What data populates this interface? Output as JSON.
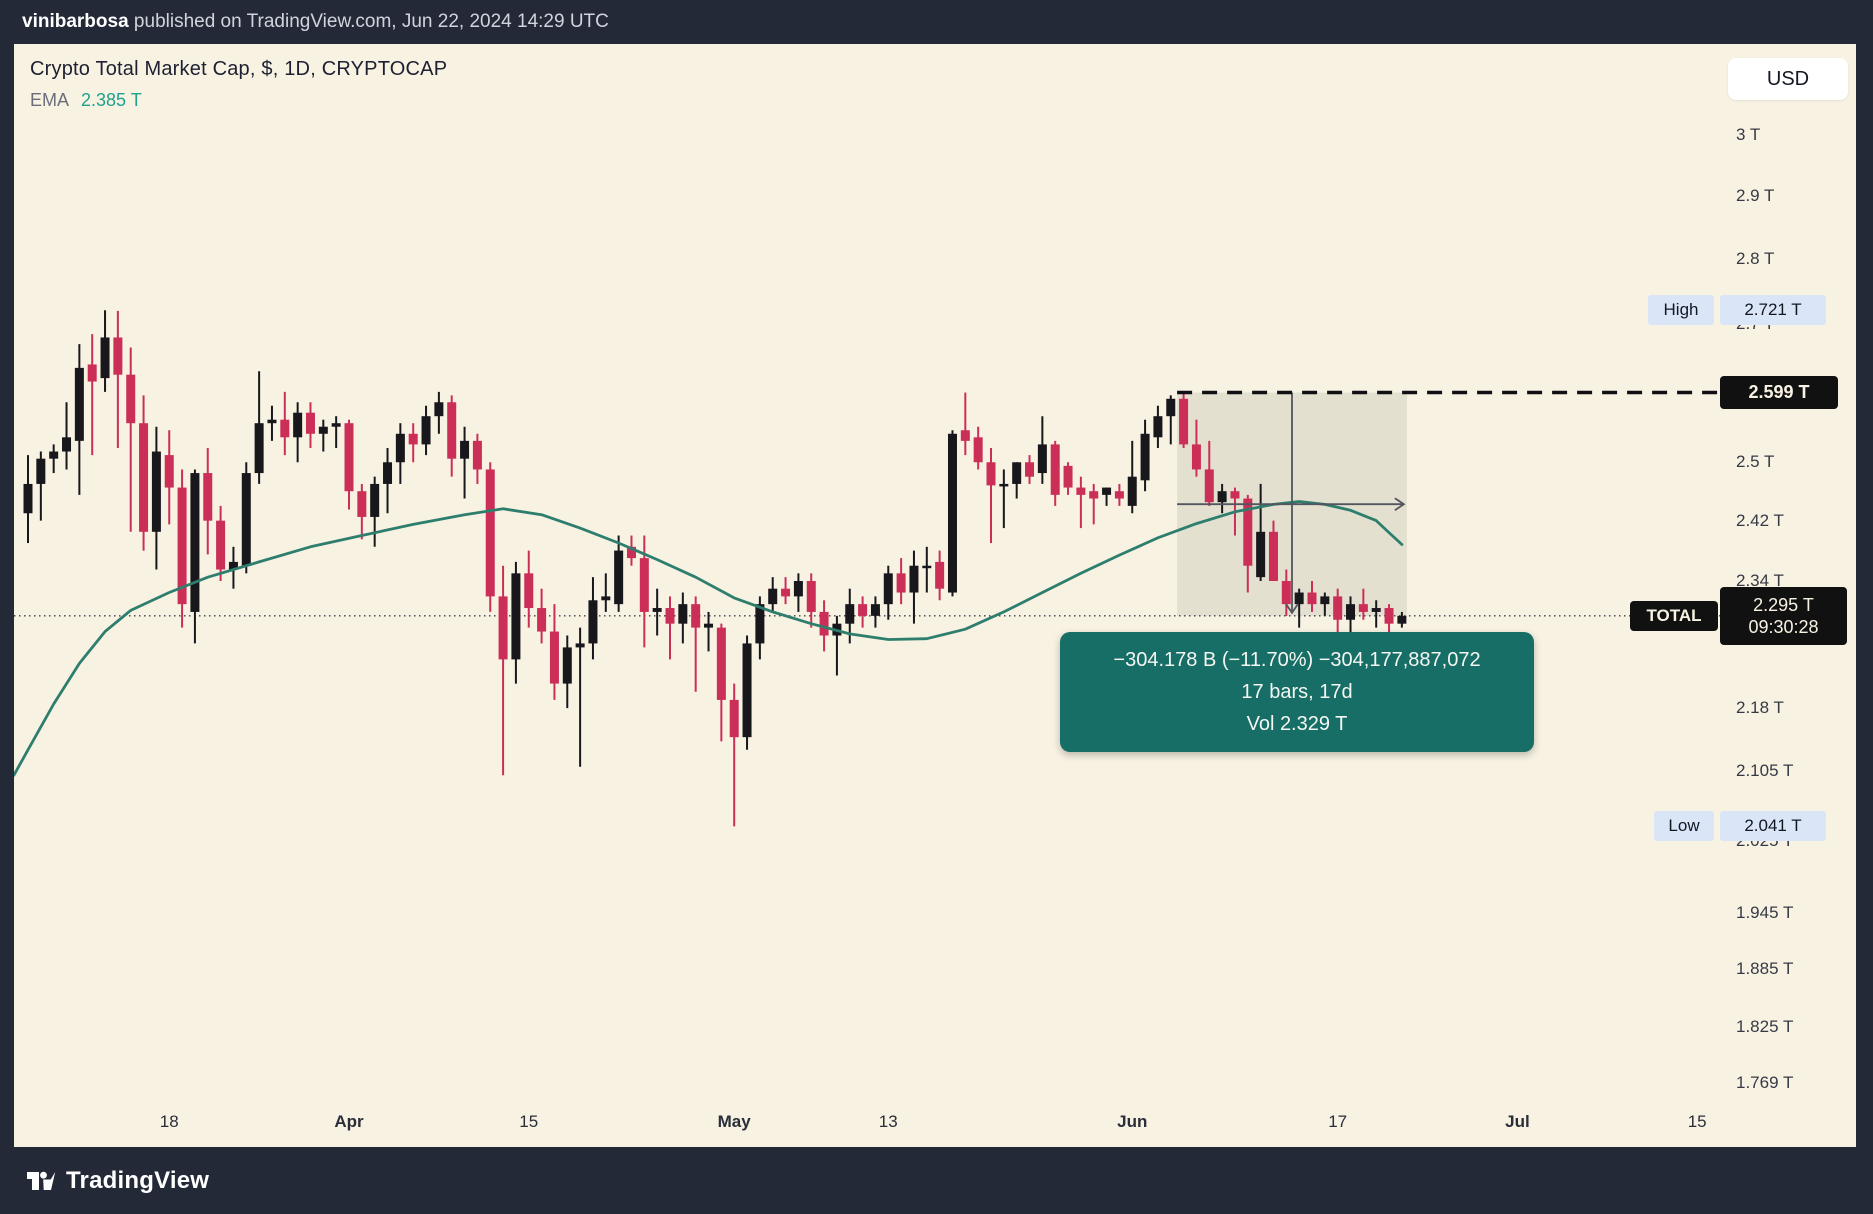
{
  "topbar": {
    "author": "vinibarbosa",
    "published": " published on TradingView.com, Jun 22, 2024 14:29 UTC"
  },
  "legend": {
    "title": "Crypto Total Market Cap, $, 1D, CRYPTOCAP",
    "ema_label": "EMA",
    "ema_value": "2.385 T"
  },
  "price_axis": {
    "currency": "USD",
    "ticks": [
      {
        "label": "3 T",
        "price": 3.0
      },
      {
        "label": "2.9 T",
        "price": 2.9
      },
      {
        "label": "2.8 T",
        "price": 2.8
      },
      {
        "label": "2.7 T",
        "price": 2.7
      },
      {
        "label": "2.5 T",
        "price": 2.5
      },
      {
        "label": "2.42 T",
        "price": 2.42
      },
      {
        "label": "2.34 T",
        "price": 2.34
      },
      {
        "label": "2.18 T",
        "price": 2.18
      },
      {
        "label": "2.105 T",
        "price": 2.105
      },
      {
        "label": "2.025 T",
        "price": 2.025
      },
      {
        "label": "1.945 T",
        "price": 1.945
      },
      {
        "label": "1.885 T",
        "price": 1.885
      },
      {
        "label": "1.825 T",
        "price": 1.825
      },
      {
        "label": "1.769 T",
        "price": 1.769
      }
    ],
    "high_chip": {
      "label": "High",
      "value": "2.721 T",
      "price": 2.721
    },
    "low_chip": {
      "label": "Low",
      "value": "2.041 T",
      "price": 2.041
    },
    "level_badge": {
      "value": "2.599 T",
      "price": 2.599
    },
    "last_badge": {
      "label": "TOTAL",
      "value": "2.295 T",
      "time": "09:30:28",
      "price": 2.295
    }
  },
  "time_axis": {
    "ticks": [
      {
        "label": "18",
        "index": 11,
        "bold": false
      },
      {
        "label": "Apr",
        "index": 25,
        "bold": true
      },
      {
        "label": "15",
        "index": 39,
        "bold": false
      },
      {
        "label": "May",
        "index": 55,
        "bold": true
      },
      {
        "label": "13",
        "index": 67,
        "bold": false
      },
      {
        "label": "Jun",
        "index": 86,
        "bold": true
      },
      {
        "label": "17",
        "index": 102,
        "bold": false
      },
      {
        "label": "Jul",
        "index": 116,
        "bold": true
      },
      {
        "label": "15",
        "index": 130,
        "bold": false
      }
    ]
  },
  "measure_tooltip": {
    "line1": "−304.178 B (−11.70%) −304,177,887,072",
    "line2": "17 bars, 17d",
    "line3": "Vol 2.329 T"
  },
  "footer": {
    "brand": "TradingView"
  },
  "colors": {
    "up": "#17171c",
    "down": "#cb2e57",
    "ema": "#2e7e6e",
    "panel_bg": "#f8f2e3",
    "frame_bg": "#242938",
    "tooltip_bg": "#176e66",
    "chip_blue": "#dbe5f8",
    "badge_black": "#111111",
    "measure_fill": "rgba(139,146,124,0.18)",
    "arrow": "#52555e"
  },
  "chart_data": {
    "type": "candlestick",
    "title": "Crypto Total Market Cap, $, 1D, CRYPTOCAP",
    "unit": "T (trillion USD)",
    "scale": "logarithmic",
    "start_date": "2024-03-07",
    "end_date": "2024-06-22",
    "visible_high": 2.721,
    "visible_low": 2.041,
    "last_price": 2.295,
    "ema_last": 2.385,
    "level_line": 2.599,
    "measure": {
      "from_index": 90,
      "to_index": 107,
      "bars": 17,
      "days": 17,
      "change": "−304.178 B",
      "change_pct": "−11.70%",
      "change_exact": "−304,177,887,072",
      "volume": "2.329 T",
      "top_price": 2.599,
      "bottom_price": 2.295
    },
    "candles": [
      [
        2.43,
        2.51,
        2.39,
        2.47
      ],
      [
        2.47,
        2.515,
        2.42,
        2.505
      ],
      [
        2.505,
        2.525,
        2.485,
        2.515
      ],
      [
        2.515,
        2.585,
        2.49,
        2.535
      ],
      [
        2.53,
        2.67,
        2.455,
        2.635
      ],
      [
        2.64,
        2.685,
        2.51,
        2.615
      ],
      [
        2.62,
        2.721,
        2.6,
        2.68
      ],
      [
        2.68,
        2.72,
        2.52,
        2.625
      ],
      [
        2.625,
        2.665,
        2.405,
        2.555
      ],
      [
        2.555,
        2.595,
        2.38,
        2.405
      ],
      [
        2.405,
        2.55,
        2.355,
        2.515
      ],
      [
        2.51,
        2.545,
        2.415,
        2.465
      ],
      [
        2.465,
        2.49,
        2.28,
        2.31
      ],
      [
        2.3,
        2.49,
        2.26,
        2.485
      ],
      [
        2.485,
        2.52,
        2.375,
        2.42
      ],
      [
        2.42,
        2.44,
        2.34,
        2.355
      ],
      [
        2.355,
        2.385,
        2.33,
        2.365
      ],
      [
        2.36,
        2.5,
        2.35,
        2.485
      ],
      [
        2.485,
        2.63,
        2.47,
        2.555
      ],
      [
        2.555,
        2.58,
        2.53,
        2.56
      ],
      [
        2.56,
        2.6,
        2.51,
        2.535
      ],
      [
        2.535,
        2.585,
        2.5,
        2.57
      ],
      [
        2.57,
        2.585,
        2.52,
        2.54
      ],
      [
        2.54,
        2.56,
        2.515,
        2.55
      ],
      [
        2.55,
        2.565,
        2.52,
        2.555
      ],
      [
        2.555,
        2.56,
        2.435,
        2.46
      ],
      [
        2.46,
        2.47,
        2.395,
        2.425
      ],
      [
        2.425,
        2.48,
        2.385,
        2.47
      ],
      [
        2.47,
        2.52,
        2.43,
        2.5
      ],
      [
        2.5,
        2.555,
        2.47,
        2.54
      ],
      [
        2.54,
        2.555,
        2.5,
        2.525
      ],
      [
        2.525,
        2.58,
        2.51,
        2.565
      ],
      [
        2.565,
        2.6,
        2.54,
        2.585
      ],
      [
        2.585,
        2.595,
        2.48,
        2.505
      ],
      [
        2.505,
        2.55,
        2.45,
        2.53
      ],
      [
        2.53,
        2.54,
        2.47,
        2.49
      ],
      [
        2.49,
        2.5,
        2.3,
        2.32
      ],
      [
        2.32,
        2.36,
        2.1,
        2.24
      ],
      [
        2.24,
        2.365,
        2.21,
        2.35
      ],
      [
        2.35,
        2.38,
        2.28,
        2.305
      ],
      [
        2.305,
        2.33,
        2.26,
        2.275
      ],
      [
        2.275,
        2.31,
        2.19,
        2.21
      ],
      [
        2.21,
        2.27,
        2.18,
        2.255
      ],
      [
        2.255,
        2.28,
        2.11,
        2.26
      ],
      [
        2.26,
        2.345,
        2.24,
        2.315
      ],
      [
        2.315,
        2.35,
        2.3,
        2.32
      ],
      [
        2.31,
        2.4,
        2.3,
        2.38
      ],
      [
        2.385,
        2.4,
        2.36,
        2.37
      ],
      [
        2.37,
        2.4,
        2.255,
        2.3
      ],
      [
        2.3,
        2.33,
        2.27,
        2.305
      ],
      [
        2.305,
        2.32,
        2.24,
        2.285
      ],
      [
        2.285,
        2.325,
        2.26,
        2.31
      ],
      [
        2.31,
        2.32,
        2.2,
        2.28
      ],
      [
        2.28,
        2.3,
        2.25,
        2.285
      ],
      [
        2.28,
        2.285,
        2.14,
        2.19
      ],
      [
        2.19,
        2.21,
        2.041,
        2.145
      ],
      [
        2.145,
        2.27,
        2.13,
        2.26
      ],
      [
        2.26,
        2.32,
        2.24,
        2.31
      ],
      [
        2.31,
        2.345,
        2.3,
        2.33
      ],
      [
        2.33,
        2.345,
        2.31,
        2.32
      ],
      [
        2.32,
        2.35,
        2.3,
        2.34
      ],
      [
        2.34,
        2.35,
        2.28,
        2.3
      ],
      [
        2.3,
        2.315,
        2.25,
        2.27
      ],
      [
        2.27,
        2.295,
        2.22,
        2.285
      ],
      [
        2.285,
        2.33,
        2.26,
        2.31
      ],
      [
        2.31,
        2.32,
        2.28,
        2.295
      ],
      [
        2.295,
        2.32,
        2.28,
        2.31
      ],
      [
        2.31,
        2.36,
        2.29,
        2.35
      ],
      [
        2.35,
        2.37,
        2.31,
        2.325
      ],
      [
        2.325,
        2.38,
        2.285,
        2.36
      ],
      [
        2.36,
        2.385,
        2.325,
        2.36
      ],
      [
        2.365,
        2.38,
        2.315,
        2.33
      ],
      [
        2.325,
        2.545,
        2.32,
        2.54
      ],
      [
        2.545,
        2.599,
        2.51,
        2.53
      ],
      [
        2.535,
        2.55,
        2.49,
        2.5
      ],
      [
        2.5,
        2.52,
        2.39,
        2.468
      ],
      [
        2.47,
        2.49,
        2.41,
        2.47
      ],
      [
        2.47,
        2.5,
        2.45,
        2.5
      ],
      [
        2.5,
        2.51,
        2.47,
        2.48
      ],
      [
        2.485,
        2.565,
        2.47,
        2.525
      ],
      [
        2.525,
        2.53,
        2.44,
        2.455
      ],
      [
        2.495,
        2.5,
        2.455,
        2.465
      ],
      [
        2.465,
        2.48,
        2.41,
        2.455
      ],
      [
        2.46,
        2.47,
        2.415,
        2.45
      ],
      [
        2.455,
        2.465,
        2.44,
        2.465
      ],
      [
        2.46,
        2.47,
        2.44,
        2.45
      ],
      [
        2.44,
        2.53,
        2.43,
        2.48
      ],
      [
        2.475,
        2.56,
        2.46,
        2.54
      ],
      [
        2.535,
        2.58,
        2.52,
        2.565
      ],
      [
        2.565,
        2.595,
        2.525,
        2.59
      ],
      [
        2.59,
        2.599,
        2.52,
        2.525
      ],
      [
        2.525,
        2.56,
        2.48,
        2.49
      ],
      [
        2.49,
        2.53,
        2.44,
        2.445
      ],
      [
        2.445,
        2.47,
        2.43,
        2.46
      ],
      [
        2.46,
        2.465,
        2.4,
        2.45
      ],
      [
        2.45,
        2.455,
        2.325,
        2.36
      ],
      [
        2.345,
        2.47,
        2.34,
        2.405
      ],
      [
        2.405,
        2.42,
        2.34,
        2.34
      ],
      [
        2.34,
        2.355,
        2.295,
        2.31
      ],
      [
        2.31,
        2.33,
        2.28,
        2.325
      ],
      [
        2.325,
        2.34,
        2.3,
        2.31
      ],
      [
        2.31,
        2.325,
        2.295,
        2.32
      ],
      [
        2.32,
        2.33,
        2.26,
        2.29
      ],
      [
        2.29,
        2.32,
        2.255,
        2.31
      ],
      [
        2.31,
        2.33,
        2.29,
        2.3
      ],
      [
        2.3,
        2.315,
        2.28,
        2.305
      ],
      [
        2.305,
        2.31,
        2.26,
        2.285
      ],
      [
        2.285,
        2.3,
        2.28,
        2.295
      ]
    ],
    "ema_points": [
      [
        -1.1,
        2.1
      ],
      [
        0,
        2.13
      ],
      [
        2,
        2.185
      ],
      [
        4,
        2.235
      ],
      [
        6,
        2.275
      ],
      [
        8,
        2.302
      ],
      [
        11,
        2.325
      ],
      [
        14,
        2.345
      ],
      [
        18,
        2.365
      ],
      [
        22,
        2.385
      ],
      [
        26,
        2.4
      ],
      [
        30,
        2.415
      ],
      [
        34,
        2.428
      ],
      [
        37,
        2.436
      ],
      [
        40,
        2.428
      ],
      [
        43,
        2.41
      ],
      [
        46,
        2.39
      ],
      [
        49,
        2.368
      ],
      [
        52,
        2.345
      ],
      [
        55,
        2.318
      ],
      [
        58,
        2.3
      ],
      [
        61,
        2.285
      ],
      [
        64,
        2.272
      ],
      [
        67,
        2.265
      ],
      [
        70,
        2.266
      ],
      [
        73,
        2.278
      ],
      [
        76,
        2.3
      ],
      [
        79,
        2.325
      ],
      [
        82,
        2.35
      ],
      [
        85,
        2.374
      ],
      [
        88,
        2.397
      ],
      [
        91,
        2.416
      ],
      [
        94,
        2.432
      ],
      [
        97,
        2.442
      ],
      [
        99,
        2.446
      ],
      [
        101,
        2.442
      ],
      [
        103,
        2.434
      ],
      [
        105,
        2.42
      ],
      [
        106,
        2.404
      ],
      [
        107,
        2.388
      ]
    ]
  }
}
